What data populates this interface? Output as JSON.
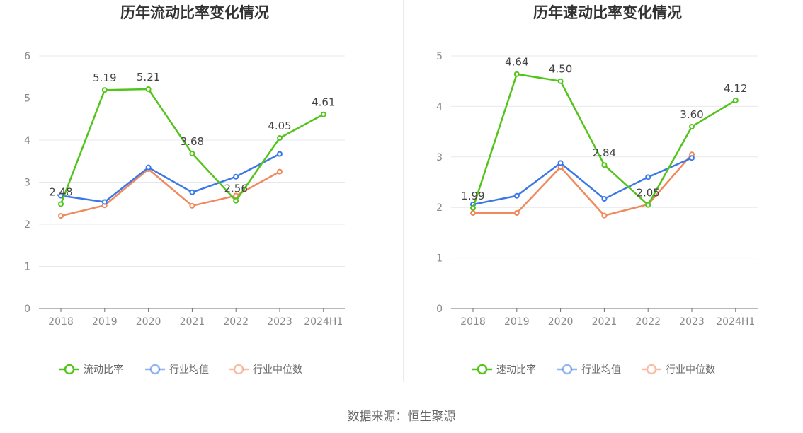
{
  "chart_data": [
    {
      "type": "line",
      "title": "历年流动比率变化情况",
      "categories": [
        "2018",
        "2019",
        "2020",
        "2021",
        "2022",
        "2023",
        "2024H1"
      ],
      "ylim": [
        0,
        6
      ],
      "yticks": [
        "0",
        "1",
        "2",
        "3",
        "4",
        "5",
        "6"
      ],
      "grid": true,
      "legend_position": "bottom",
      "series": [
        {
          "name": "流动比率",
          "color": "#52c41a",
          "labeled": true,
          "values": [
            2.48,
            5.19,
            5.21,
            3.68,
            2.56,
            4.05,
            4.61
          ],
          "labels": [
            "2.48",
            "5.19",
            "5.21",
            "3.68",
            "2.56",
            "4.05",
            "4.61"
          ]
        },
        {
          "name": "行业均值",
          "color": "#3b78e7",
          "labeled": false,
          "values": [
            2.68,
            2.53,
            3.35,
            2.76,
            3.13,
            3.67,
            null
          ]
        },
        {
          "name": "行业中位数",
          "color": "#f0895c",
          "labeled": false,
          "values": [
            2.2,
            2.45,
            3.31,
            2.44,
            2.68,
            3.25,
            null
          ]
        }
      ]
    },
    {
      "type": "line",
      "title": "历年速动比率变化情况",
      "categories": [
        "2018",
        "2019",
        "2020",
        "2021",
        "2022",
        "2023",
        "2024H1"
      ],
      "ylim": [
        0,
        5
      ],
      "yticks": [
        "0",
        "1",
        "2",
        "3",
        "4",
        "5"
      ],
      "grid": true,
      "legend_position": "bottom",
      "series": [
        {
          "name": "速动比率",
          "color": "#52c41a",
          "labeled": true,
          "values": [
            1.99,
            4.64,
            4.5,
            2.84,
            2.05,
            3.6,
            4.12
          ],
          "labels": [
            "1.99",
            "4.64",
            "4.50",
            "2.84",
            "2.05",
            "3.60",
            "4.12"
          ]
        },
        {
          "name": "行业均值",
          "color": "#3b78e7",
          "labeled": false,
          "values": [
            2.06,
            2.23,
            2.88,
            2.17,
            2.6,
            2.98,
            null
          ]
        },
        {
          "name": "行业中位数",
          "color": "#f0895c",
          "labeled": false,
          "values": [
            1.89,
            1.89,
            2.8,
            1.84,
            2.06,
            3.05,
            null
          ]
        }
      ]
    }
  ],
  "footer": {
    "source": "数据来源：恒生聚源"
  }
}
